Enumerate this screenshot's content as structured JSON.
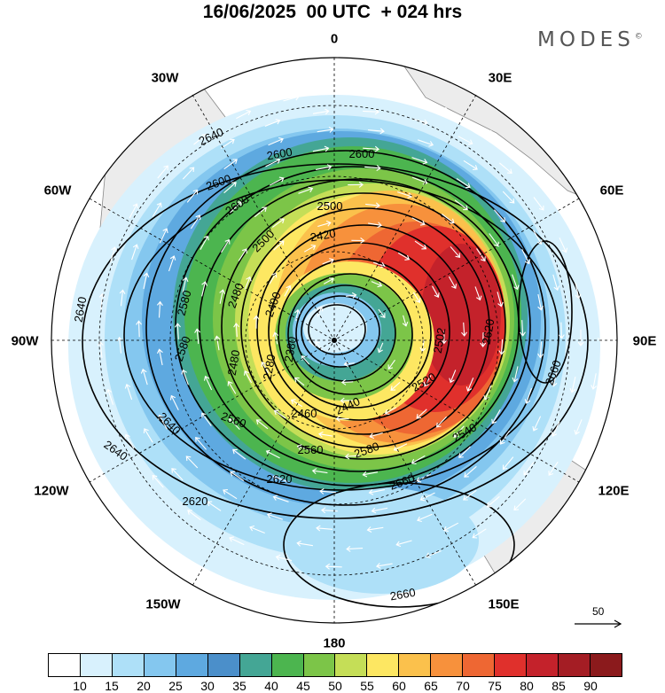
{
  "title": "16/06/2025  00 UTC  + 024 hrs",
  "brand": "MODES",
  "brand_mark": "©",
  "longitude_labels": {
    "top": "0",
    "bottom": "180",
    "left": "90W",
    "right": "90E",
    "nw1": "30W",
    "nw2": "60W",
    "ne1": "30E",
    "ne2": "60E",
    "sw1": "120W",
    "sw2": "150W",
    "se1": "120E",
    "se2": "150E"
  },
  "contour_labels": [
    "2640",
    "2600",
    "2600",
    "2600",
    "2600",
    "2500",
    "2500",
    "2420",
    "2480",
    "2400",
    "2380",
    "2640",
    "2580",
    "2480",
    "2580",
    "2280",
    "2502",
    "2520",
    "2460",
    "2440",
    "2620",
    "2560",
    "2640",
    "2620",
    "2540",
    "2560",
    "2580",
    "2660",
    "2620",
    "2660",
    "2660",
    "2640"
  ],
  "reference_vector": "50",
  "colorbar": {
    "ticks": [
      "10",
      "15",
      "20",
      "25",
      "30",
      "35",
      "40",
      "45",
      "50",
      "55",
      "60",
      "65",
      "70",
      "75",
      "80",
      "85",
      "90"
    ],
    "colors": [
      "#ffffff",
      "#d8f1fd",
      "#aee0f8",
      "#84c7ef",
      "#5ea9e0",
      "#4b8fca",
      "#44a695",
      "#4cb54f",
      "#7cc548",
      "#c5de57",
      "#fde762",
      "#fbc14c",
      "#f7913c",
      "#ee6733",
      "#e0302c",
      "#c4222b",
      "#a41d24",
      "#8b1a1c"
    ]
  },
  "colors": {
    "land": "#ececec",
    "coast": "#888888"
  }
}
